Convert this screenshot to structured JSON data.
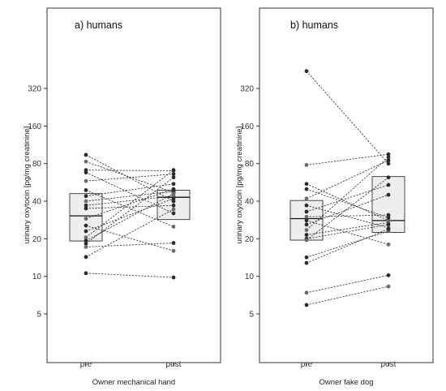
{
  "chart_data": [
    {
      "type": "box_paired_scatter",
      "title": "a) humans",
      "xlabel": "Owner mechanical hand",
      "ylabel": "urinary oxytocin [pg/mg creatinine]",
      "y_scale": "log2",
      "ylim": [
        2.5,
        640
      ],
      "y_ticks": [
        5,
        10,
        20,
        40,
        80,
        160,
        320
      ],
      "y_tick_labels": [
        "5",
        "10",
        "20",
        "40",
        "80",
        "160",
        "320"
      ],
      "categories": [
        "pre",
        "post"
      ],
      "boxes": [
        {
          "category": "pre",
          "q1": 19.2,
          "median": 30.5,
          "q3": 46.0
        },
        {
          "category": "post",
          "q1": 28.5,
          "median": 43.0,
          "q3": 49.0
        }
      ],
      "pairs": [
        {
          "pre": 94,
          "post": 40
        },
        {
          "pre": 83,
          "post": 47
        },
        {
          "pre": 71,
          "post": 70
        },
        {
          "pre": 68,
          "post": 32
        },
        {
          "pre": 58,
          "post": 66
        },
        {
          "pre": 49,
          "post": 25
        },
        {
          "pre": 44,
          "post": 55
        },
        {
          "pre": 40,
          "post": 48
        },
        {
          "pre": 37,
          "post": 44
        },
        {
          "pre": 35,
          "post": 37
        },
        {
          "pre": 29,
          "post": 50
        },
        {
          "pre": 25.5,
          "post": 16
        },
        {
          "pre": 23,
          "post": 42
        },
        {
          "pre": 20.5,
          "post": 71
        },
        {
          "pre": 19.3,
          "post": 46
        },
        {
          "pre": 18.3,
          "post": 62
        },
        {
          "pre": 17.2,
          "post": 18.5
        },
        {
          "pre": 14.3,
          "post": 34.5
        },
        {
          "pre": 10.6,
          "post": 9.8
        }
      ]
    },
    {
      "type": "box_paired_scatter",
      "title": "b) humans",
      "xlabel": "Owner fake dog",
      "ylabel": "urinary oxytocin [pg/mg creatinine]",
      "y_scale": "log2",
      "ylim": [
        2.5,
        640
      ],
      "y_ticks": [
        5,
        10,
        20,
        40,
        80,
        160,
        320
      ],
      "y_tick_labels": [
        "5",
        "10",
        "20",
        "40",
        "80",
        "160",
        "320"
      ],
      "categories": [
        "pre",
        "post"
      ],
      "boxes": [
        {
          "category": "pre",
          "q1": 19.5,
          "median": 29.0,
          "q3": 40.5
        },
        {
          "category": "post",
          "q1": 22.5,
          "median": 28.0,
          "q3": 63.0
        }
      ],
      "pairs": [
        {
          "pre": 440,
          "post": 80
        },
        {
          "pre": 78,
          "post": 95
        },
        {
          "pre": 55,
          "post": 28
        },
        {
          "pre": 50,
          "post": 29.5
        },
        {
          "pre": 42,
          "post": 85
        },
        {
          "pre": 37,
          "post": 24.5
        },
        {
          "pre": 33,
          "post": 54
        },
        {
          "pre": 30,
          "post": 31
        },
        {
          "pre": 28,
          "post": 18
        },
        {
          "pre": 26,
          "post": 45
        },
        {
          "pre": 23.5,
          "post": 90
        },
        {
          "pre": 21.5,
          "post": 27
        },
        {
          "pre": 20,
          "post": 26
        },
        {
          "pre": 19.5,
          "post": 62
        },
        {
          "pre": 14.2,
          "post": 23
        },
        {
          "pre": 12.8,
          "post": 24
        },
        {
          "pre": 7.4,
          "post": 10.2
        },
        {
          "pre": 5.9,
          "post": 8.3
        }
      ]
    }
  ]
}
